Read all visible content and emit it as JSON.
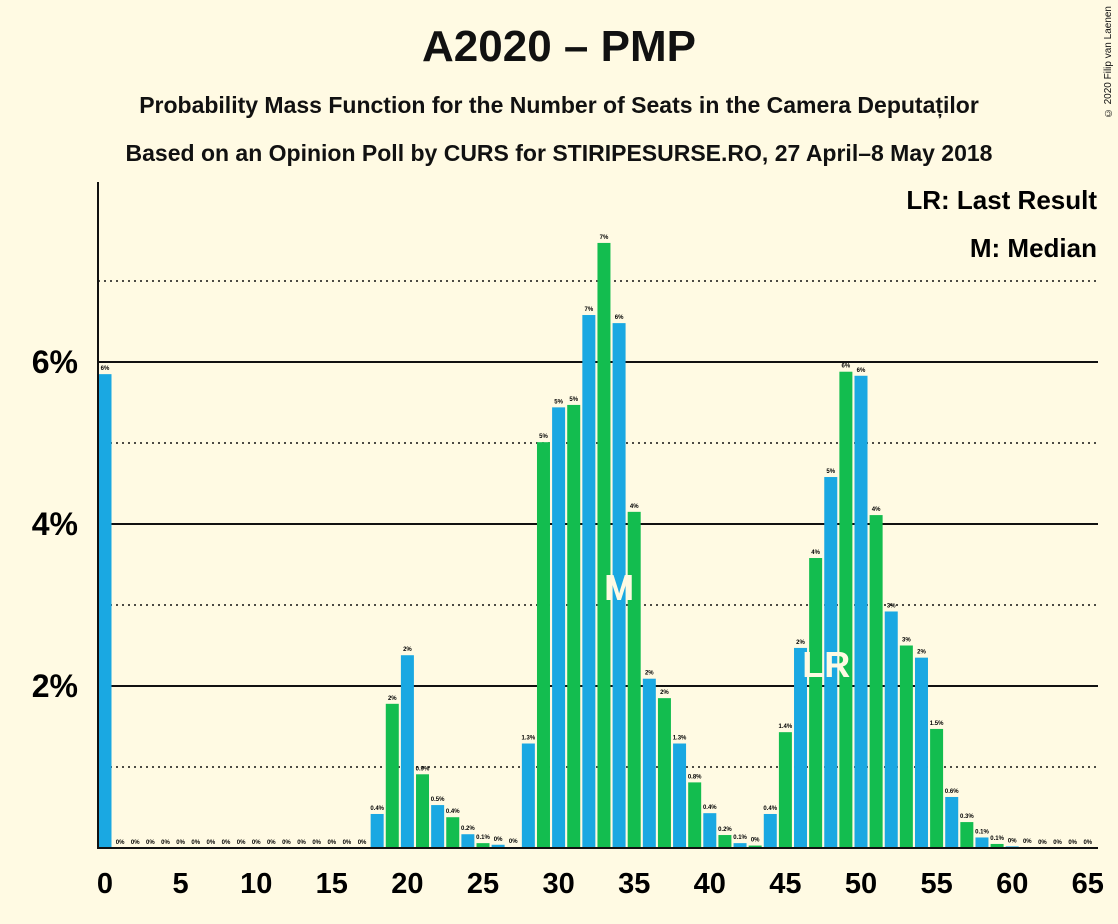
{
  "header": {
    "title": "A2020 – PMP",
    "subtitle1": "Probability Mass Function for the Number of Seats in the Camera Deputaților",
    "subtitle2": "Based on an Opinion Poll by CURS for STIRIPESURSE.RO, 27 April–8 May 2018",
    "copyright": "© 2020 Filip van Laenen"
  },
  "legend": {
    "lr": "LR: Last Result",
    "m": "M: Median"
  },
  "colors": {
    "background": "#fffae3",
    "blue": "#1aa8e2",
    "green": "#13bd4f"
  },
  "chart_data": {
    "type": "bar",
    "x": [
      0,
      1,
      2,
      3,
      4,
      5,
      6,
      7,
      8,
      9,
      10,
      11,
      12,
      13,
      14,
      15,
      16,
      17,
      18,
      19,
      20,
      21,
      22,
      23,
      24,
      25,
      26,
      27,
      28,
      29,
      30,
      31,
      32,
      33,
      34,
      35,
      36,
      37,
      38,
      39,
      40,
      41,
      42,
      43,
      44,
      45,
      46,
      47,
      48,
      49,
      50,
      51,
      52,
      53,
      54,
      55,
      56,
      57,
      58,
      59,
      60,
      61,
      62,
      63,
      64,
      65
    ],
    "values": [
      5.85,
      0,
      0,
      0,
      0,
      0,
      0,
      0,
      0,
      0,
      0,
      0,
      0,
      0,
      0,
      0,
      0,
      0,
      0.42,
      1.78,
      2.38,
      0.91,
      0.53,
      0.38,
      0.17,
      0.06,
      0.04,
      0.01,
      1.29,
      5.01,
      5.44,
      5.47,
      6.58,
      7.47,
      6.48,
      4.15,
      2.09,
      1.85,
      1.29,
      0.81,
      0.43,
      0.16,
      0.06,
      0.03,
      0.42,
      1.43,
      2.47,
      3.58,
      4.58,
      5.88,
      5.83,
      4.11,
      2.92,
      2.5,
      2.35,
      1.47,
      0.63,
      0.32,
      0.13,
      0.05,
      0.02,
      0.01,
      0,
      0,
      0,
      0
    ],
    "data_labels": [
      "6%",
      "0%",
      "0%",
      "0%",
      "0%",
      "0%",
      "0%",
      "0%",
      "0%",
      "0%",
      "0%",
      "0%",
      "0%",
      "0%",
      "0%",
      "0%",
      "0%",
      "0%",
      "0.4%",
      "2%",
      "2%",
      "0.9%",
      "0.5%",
      "0.4%",
      "0.2%",
      "0.1%",
      "0%",
      "0%",
      "1.3%",
      "5%",
      "5%",
      "5%",
      "7%",
      "7%",
      "6%",
      "4%",
      "2%",
      "2%",
      "1.3%",
      "0.8%",
      "0.4%",
      "0.2%",
      "0.1%",
      "0%",
      "0.4%",
      "1.4%",
      "2%",
      "4%",
      "5%",
      "6%",
      "6%",
      "4%",
      "3%",
      "3%",
      "2%",
      "1.5%",
      "0.6%",
      "0.3%",
      "0.1%",
      "0.1%",
      "0%",
      "0%",
      "0%",
      "0%",
      "0%",
      "0%"
    ],
    "ylim": [
      0,
      8
    ],
    "ytick_labels": [
      "2%",
      "4%",
      "6%"
    ],
    "xtick_labels": [
      "0",
      "5",
      "10",
      "15",
      "20",
      "25",
      "30",
      "35",
      "40",
      "45",
      "50",
      "55",
      "60",
      "65"
    ],
    "median": 34,
    "median_label": "M",
    "last_result": 48,
    "last_result_label": "LR"
  }
}
